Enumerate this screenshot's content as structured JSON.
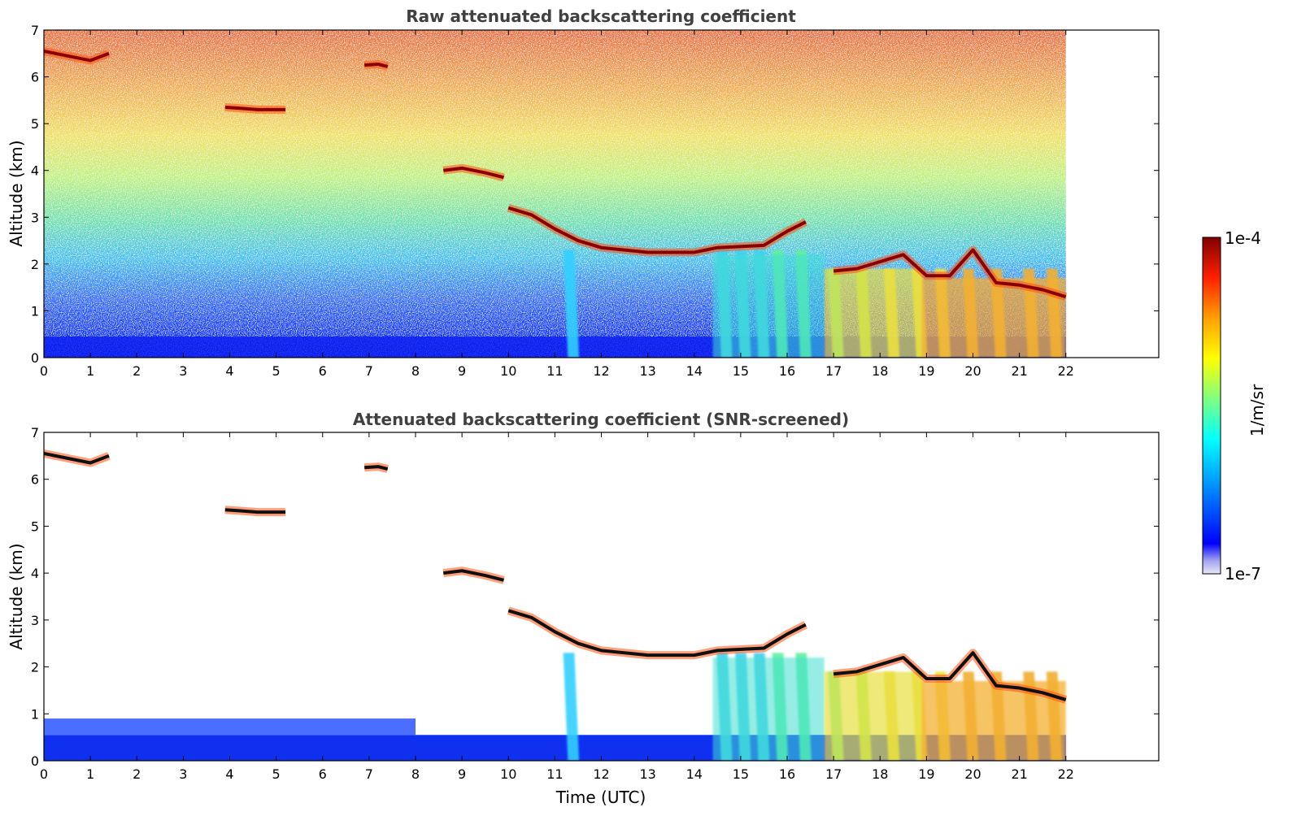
{
  "chart_data": [
    {
      "type": "heatmap",
      "title": "Raw attenuated backscattering coefficient",
      "xlabel": "",
      "ylabel": "Altitude (km)",
      "xlim": [
        0,
        24
      ],
      "ylim": [
        0,
        7
      ],
      "xticks": [
        "0",
        "1",
        "2",
        "3",
        "4",
        "5",
        "6",
        "7",
        "8",
        "9",
        "10",
        "11",
        "12",
        "13",
        "14",
        "15",
        "16",
        "17",
        "18",
        "19",
        "20",
        "21",
        "22"
      ],
      "yticks": [
        "0",
        "1",
        "2",
        "3",
        "4",
        "5",
        "6",
        "7"
      ],
      "data_end_hour": 22,
      "cloud_layers": [
        {
          "t": [
            0,
            0.5,
            1.0,
            1.4
          ],
          "alt": [
            6.55,
            6.45,
            6.35,
            6.5
          ]
        },
        {
          "t": [
            3.9,
            4.2,
            4.6,
            5.2
          ],
          "alt": [
            5.35,
            5.33,
            5.3,
            5.3
          ]
        },
        {
          "t": [
            6.9,
            7.2,
            7.4
          ],
          "alt": [
            6.25,
            6.27,
            6.22
          ]
        },
        {
          "t": [
            8.6,
            9.0,
            9.5,
            9.9
          ],
          "alt": [
            4.0,
            4.05,
            3.95,
            3.85
          ]
        },
        {
          "t": [
            10.0,
            10.5,
            11.0,
            11.5,
            12.0,
            13.0,
            14.0,
            14.5,
            15.5,
            16.0,
            16.4
          ],
          "alt": [
            3.2,
            3.05,
            2.75,
            2.5,
            2.35,
            2.25,
            2.25,
            2.35,
            2.4,
            2.7,
            2.9
          ]
        },
        {
          "t": [
            17.0,
            17.5,
            18.0,
            18.5,
            19.0,
            19.5,
            20.0,
            20.5,
            21.0,
            21.5,
            22.0
          ],
          "alt": [
            1.85,
            1.9,
            2.05,
            2.2,
            1.75,
            1.75,
            2.3,
            1.6,
            1.55,
            1.45,
            1.3
          ]
        }
      ],
      "fall_streaks_hours": [
        11.3,
        14.6,
        15.0,
        15.4,
        15.8,
        16.3,
        17.0,
        17.6,
        18.2,
        18.8,
        19.3,
        19.9,
        20.5,
        21.2,
        21.7
      ]
    },
    {
      "type": "heatmap",
      "title": "Attenuated backscattering coefficient (SNR-screened)",
      "xlabel": "Time (UTC)",
      "ylabel": "Altitude (km)",
      "xlim": [
        0,
        24
      ],
      "ylim": [
        0,
        7
      ],
      "xticks": [
        "0",
        "1",
        "2",
        "3",
        "4",
        "5",
        "6",
        "7",
        "8",
        "9",
        "10",
        "11",
        "12",
        "13",
        "14",
        "15",
        "16",
        "17",
        "18",
        "19",
        "20",
        "21",
        "22"
      ],
      "yticks": [
        "0",
        "1",
        "2",
        "3",
        "4",
        "5",
        "6",
        "7"
      ],
      "data_end_hour": 22
    }
  ],
  "colorbar": {
    "label": "1/m/sr",
    "max_label": "1e-4",
    "min_label": "1e-7",
    "colormap": "jet",
    "colors": [
      "#e8e8f8",
      "#0000ff",
      "#00a0ff",
      "#00ffff",
      "#80ff80",
      "#ffff00",
      "#ffa000",
      "#ff2000",
      "#800000"
    ]
  }
}
